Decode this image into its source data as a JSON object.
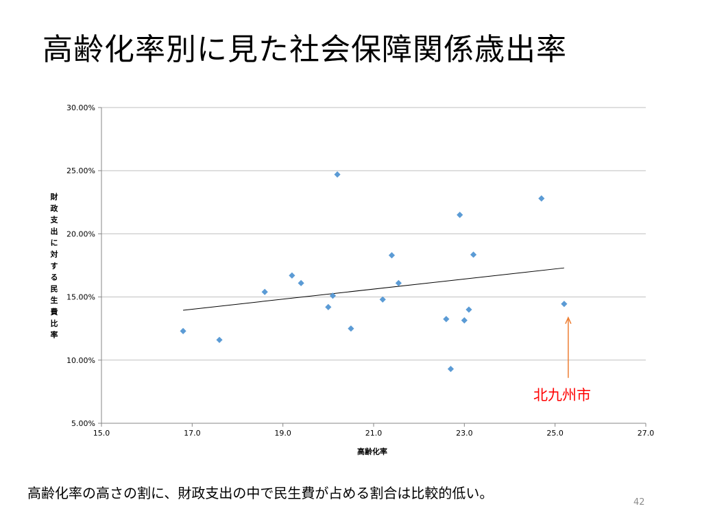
{
  "slide": {
    "title": "高齢化率別に見た社会保障関係歳出率",
    "caption": "高齢化率の高さの割に、財政支出の中で民生費が占める割合は比較的低い。",
    "page_number": "42"
  },
  "chart_data": {
    "type": "scatter",
    "title": "",
    "xlabel": "高齢化率",
    "ylabel": "財政支出に対する民生費比率",
    "xlim": [
      15.0,
      27.0
    ],
    "ylim": [
      5.0,
      30.0
    ],
    "x_ticks": [
      "15.0",
      "17.0",
      "19.0",
      "21.0",
      "23.0",
      "25.0",
      "27.0"
    ],
    "y_ticks": [
      "5.00%",
      "10.00%",
      "15.00%",
      "20.00%",
      "25.00%",
      "30.00%"
    ],
    "grid": true,
    "legend": "none",
    "point_color": "#5b9bd5",
    "series": [
      {
        "points": [
          {
            "x": 16.8,
            "y": 12.3
          },
          {
            "x": 17.6,
            "y": 11.6
          },
          {
            "x": 18.6,
            "y": 15.4
          },
          {
            "x": 19.2,
            "y": 16.7
          },
          {
            "x": 19.4,
            "y": 16.1
          },
          {
            "x": 20.0,
            "y": 14.2
          },
          {
            "x": 20.1,
            "y": 15.1
          },
          {
            "x": 20.2,
            "y": 24.7
          },
          {
            "x": 20.5,
            "y": 12.5
          },
          {
            "x": 21.2,
            "y": 14.8
          },
          {
            "x": 21.4,
            "y": 18.3
          },
          {
            "x": 21.55,
            "y": 16.1
          },
          {
            "x": 22.6,
            "y": 13.25
          },
          {
            "x": 22.7,
            "y": 9.3
          },
          {
            "x": 22.9,
            "y": 21.5
          },
          {
            "x": 23.0,
            "y": 13.15
          },
          {
            "x": 23.1,
            "y": 14.0
          },
          {
            "x": 23.2,
            "y": 18.35
          },
          {
            "x": 24.7,
            "y": 22.8
          },
          {
            "x": 25.2,
            "y": 14.45
          }
        ]
      }
    ],
    "trendline": {
      "type": "linear",
      "x": [
        16.8,
        25.2
      ],
      "y": [
        13.95,
        17.3
      ]
    },
    "annotation": {
      "label": "北九州市",
      "target": {
        "x": 25.2,
        "y": 14.45
      },
      "color": "#ff0000",
      "arrow_color": "#ed7d31"
    }
  }
}
